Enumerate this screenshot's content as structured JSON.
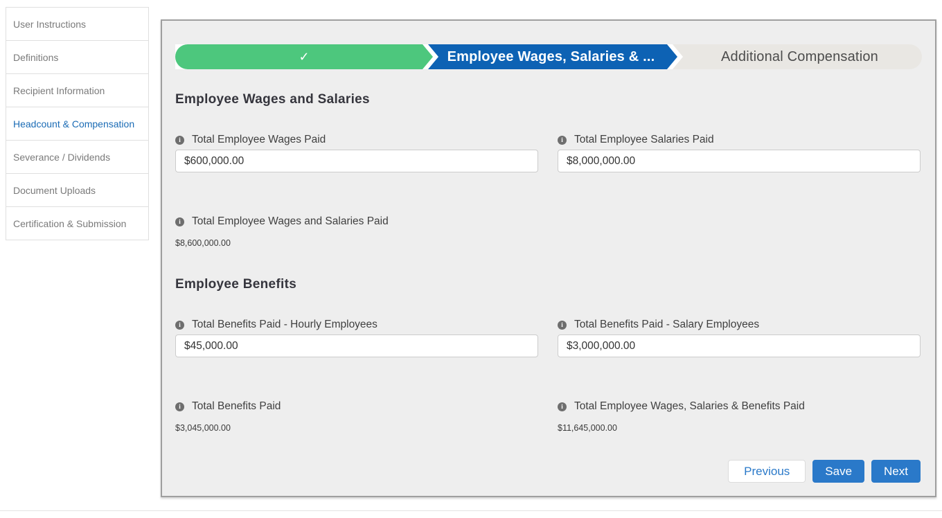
{
  "sidebar": {
    "items": [
      {
        "label": "User Instructions",
        "active": false
      },
      {
        "label": "Definitions",
        "active": false
      },
      {
        "label": "Recipient Information",
        "active": false
      },
      {
        "label": "Headcount & Compensation",
        "active": true
      },
      {
        "label": "Severance / Dividends",
        "active": false
      },
      {
        "label": "Document Uploads",
        "active": false
      },
      {
        "label": "Certification & Submission",
        "active": false
      }
    ]
  },
  "stepper": {
    "completed_icon": "✓",
    "active_label": "Employee Wages, Salaries & ...",
    "upcoming_label": "Additional Compensation"
  },
  "icons": {
    "info": "i"
  },
  "sections": [
    {
      "heading": "Employee Wages and Salaries",
      "fields": [
        {
          "label": "Total Employee Wages Paid",
          "value": "$600,000.00",
          "type": "input"
        },
        {
          "label": "Total Employee Salaries Paid",
          "value": "$8,000,000.00",
          "type": "input"
        },
        {
          "label": "Total Employee Wages and Salaries Paid",
          "value": "$8,600,000.00",
          "type": "readonly"
        }
      ]
    },
    {
      "heading": "Employee Benefits",
      "fields": [
        {
          "label": "Total Benefits Paid - Hourly Employees",
          "value": "$45,000.00",
          "type": "input"
        },
        {
          "label": "Total Benefits Paid - Salary Employees",
          "value": "$3,000,000.00",
          "type": "input"
        },
        {
          "label": "Total Benefits Paid",
          "value": "$3,045,000.00",
          "type": "readonly"
        },
        {
          "label": "Total Employee Wages, Salaries & Benefits Paid",
          "value": "$11,645,000.00",
          "type": "readonly"
        }
      ]
    }
  ],
  "buttons": {
    "previous": "Previous",
    "save": "Save",
    "next": "Next"
  },
  "colors": {
    "step_complete_green": "#4dc77d",
    "step_active_blue": "#0d62b4",
    "button_blue": "#2a79c9",
    "active_nav_blue": "#1a6bb5",
    "panel_background": "#eeeeee"
  }
}
